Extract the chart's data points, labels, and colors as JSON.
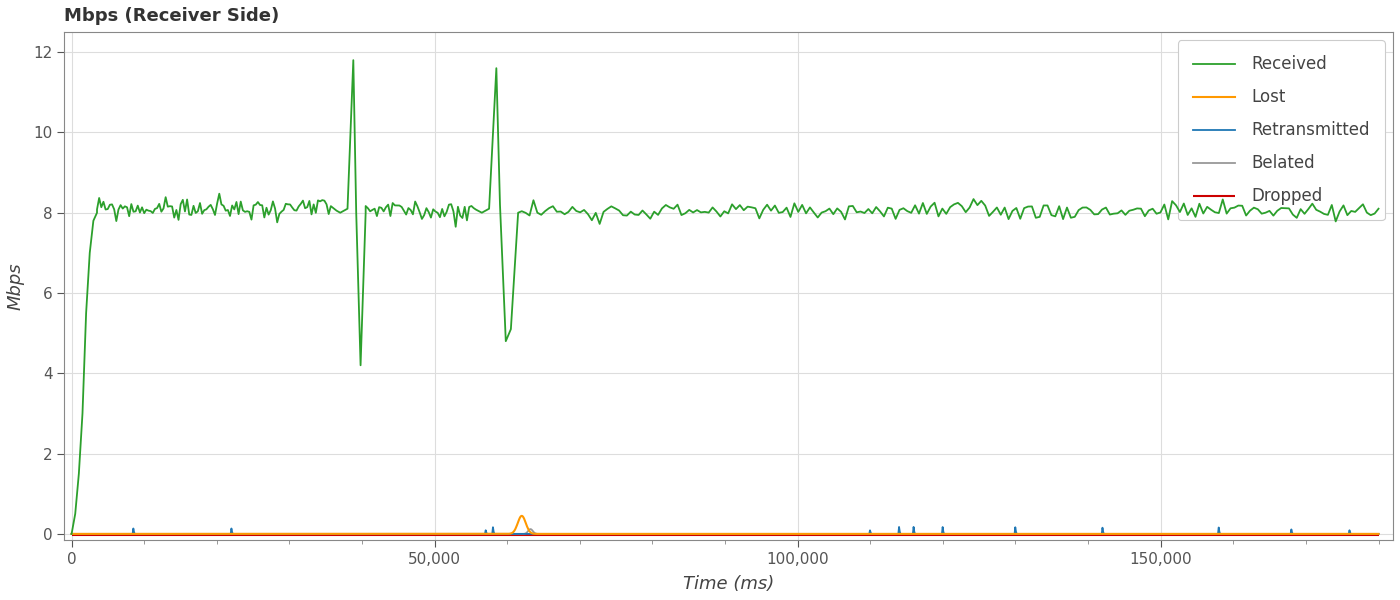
{
  "title": "Mbps (Receiver Side)",
  "xlabel": "Time (ms)",
  "ylabel": "Mbps",
  "background_color": "#ffffff",
  "plot_bg_color": "#ffffff",
  "grid_color": "#dddddd",
  "xlim": [
    -1000,
    182000
  ],
  "ylim": [
    -0.15,
    12.5
  ],
  "yticks": [
    0,
    2,
    4,
    6,
    8,
    10,
    12
  ],
  "legend_labels": [
    "Received",
    "Lost",
    "Retransmitted",
    "Belated",
    "Dropped"
  ],
  "line_colors": {
    "received": "#2ca02c",
    "lost": "#ff9900",
    "retransmitted": "#1f77b4",
    "belated": "#999999",
    "dropped": "#cc0000"
  },
  "line_widths": {
    "received": 1.3,
    "lost": 1.5,
    "retransmitted": 1.3,
    "belated": 1.3,
    "dropped": 1.5
  },
  "tick_color": "#555555",
  "label_color": "#444444",
  "title_color": "#333333"
}
